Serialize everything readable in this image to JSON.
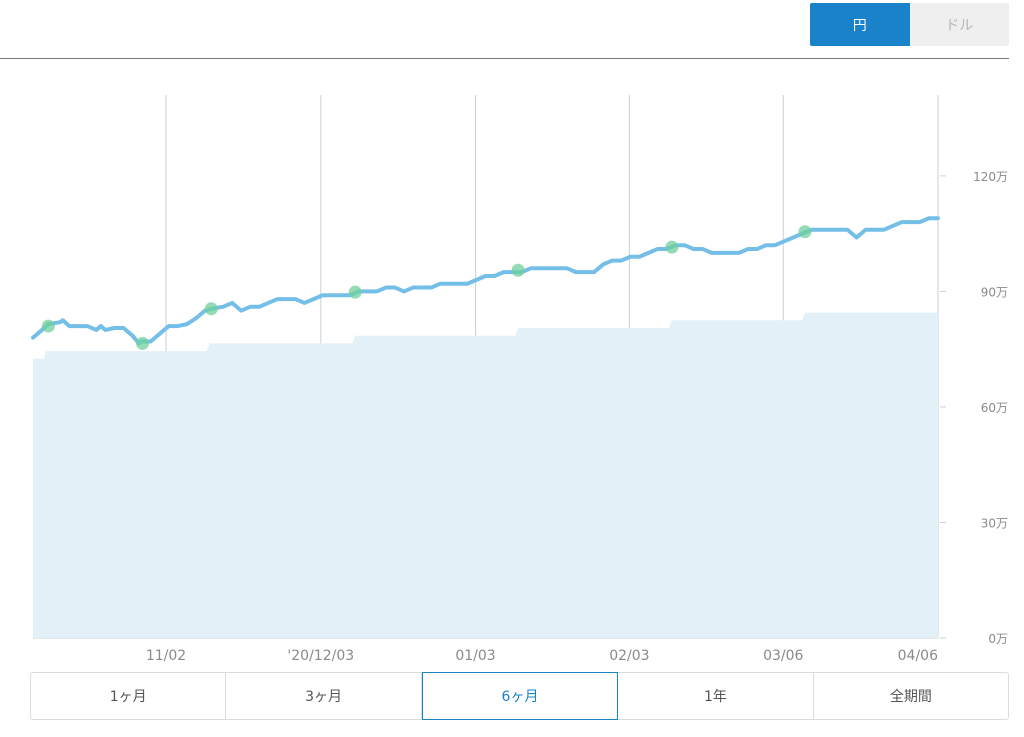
{
  "currency_toggle": {
    "options": [
      {
        "label": "円",
        "active": true
      },
      {
        "label": "ドル",
        "active": false
      }
    ]
  },
  "period_tabs": [
    {
      "label": "1ヶ月",
      "selected": false
    },
    {
      "label": "3ヶ月",
      "selected": false
    },
    {
      "label": "6ヶ月",
      "selected": true
    },
    {
      "label": "1年",
      "selected": false
    },
    {
      "label": "全期間",
      "selected": false
    }
  ],
  "colors": {
    "line": "#74bfe8",
    "area": "#e3f0f8",
    "marker": "#6fd09c",
    "grid": "#c8d0d8",
    "accent": "#1a82c8"
  },
  "chart_data": {
    "type": "line",
    "x_ticks": [
      "11/02",
      "'20/12/03",
      "01/03",
      "02/03",
      "03/06",
      "04/06"
    ],
    "y_ticks": [
      "0万",
      "30万",
      "60万",
      "90万",
      "120万"
    ],
    "y_tick_values": [
      0,
      30,
      60,
      90,
      120
    ],
    "x_range": [
      0,
      100
    ],
    "ylim": [
      0,
      141
    ],
    "x_tick_positions": [
      14.7,
      31.8,
      48.9,
      65.9,
      82.9,
      100
    ],
    "series": [
      {
        "kind": "line",
        "points": [
          [
            0,
            78
          ],
          [
            1,
            80
          ],
          [
            1.7,
            81.5
          ],
          [
            3,
            82
          ],
          [
            3.3,
            82.5
          ],
          [
            4,
            81
          ],
          [
            5,
            81
          ],
          [
            6,
            81
          ],
          [
            7,
            80
          ],
          [
            7.5,
            81
          ],
          [
            8,
            80
          ],
          [
            9,
            80.5
          ],
          [
            10,
            80.5
          ],
          [
            11,
            78.5
          ],
          [
            11.7,
            76.5
          ],
          [
            12,
            77
          ],
          [
            13,
            77
          ],
          [
            14,
            79
          ],
          [
            15,
            81
          ],
          [
            16,
            81
          ],
          [
            17,
            81.5
          ],
          [
            18,
            83
          ],
          [
            19,
            85
          ],
          [
            19.7,
            85.5
          ],
          [
            21,
            86
          ],
          [
            22,
            87
          ],
          [
            23,
            85
          ],
          [
            24,
            86
          ],
          [
            25,
            86
          ],
          [
            26,
            87
          ],
          [
            27,
            88
          ],
          [
            28,
            88
          ],
          [
            29,
            88
          ],
          [
            30,
            87
          ],
          [
            31,
            88
          ],
          [
            32,
            89
          ],
          [
            33,
            89
          ],
          [
            34,
            89
          ],
          [
            35,
            89
          ],
          [
            36,
            90
          ],
          [
            37,
            90
          ],
          [
            38,
            90
          ],
          [
            39,
            91
          ],
          [
            40,
            91
          ],
          [
            41,
            90
          ],
          [
            42,
            91
          ],
          [
            43,
            91
          ],
          [
            44,
            91
          ],
          [
            45,
            92
          ],
          [
            46,
            92
          ],
          [
            47,
            92
          ],
          [
            48,
            92
          ],
          [
            49,
            93
          ],
          [
            50,
            94
          ],
          [
            51,
            94
          ],
          [
            52,
            95
          ],
          [
            53,
            95
          ],
          [
            54,
            95
          ],
          [
            55,
            96
          ],
          [
            56,
            96
          ],
          [
            57,
            96
          ],
          [
            58,
            96
          ],
          [
            59,
            96
          ],
          [
            60,
            95
          ],
          [
            61,
            95
          ],
          [
            62,
            95
          ],
          [
            63,
            97
          ],
          [
            64,
            98
          ],
          [
            65,
            98
          ],
          [
            66,
            99
          ],
          [
            67,
            99
          ],
          [
            68,
            100
          ],
          [
            69,
            101
          ],
          [
            70,
            101
          ],
          [
            71,
            102
          ],
          [
            72,
            102
          ],
          [
            73,
            101
          ],
          [
            74,
            101
          ],
          [
            75,
            100
          ],
          [
            76,
            100
          ],
          [
            77,
            100
          ],
          [
            78,
            100
          ],
          [
            79,
            101
          ],
          [
            80,
            101
          ],
          [
            81,
            102
          ],
          [
            82,
            102
          ],
          [
            83,
            103
          ],
          [
            84,
            104
          ],
          [
            85,
            105
          ],
          [
            86,
            106
          ],
          [
            87,
            106
          ],
          [
            88,
            106
          ],
          [
            89,
            106
          ],
          [
            90,
            106
          ],
          [
            91,
            104
          ],
          [
            92,
            106
          ],
          [
            93,
            106
          ],
          [
            94,
            106
          ],
          [
            95,
            107
          ],
          [
            96,
            108
          ],
          [
            97,
            108
          ],
          [
            98,
            108
          ],
          [
            99,
            109
          ],
          [
            100,
            109
          ]
        ]
      },
      {
        "kind": "area",
        "points": [
          [
            0,
            72.5
          ],
          [
            1.2,
            72.5
          ],
          [
            1.4,
            74.5
          ],
          [
            19.2,
            74.5
          ],
          [
            19.5,
            76.5
          ],
          [
            35.3,
            76.5
          ],
          [
            35.6,
            78.5
          ],
          [
            53.3,
            78.5
          ],
          [
            53.6,
            80.5
          ],
          [
            70.3,
            80.5
          ],
          [
            70.6,
            82.5
          ],
          [
            85,
            82.5
          ],
          [
            85.3,
            84.5
          ],
          [
            100,
            84.5
          ]
        ]
      }
    ],
    "markers": [
      [
        1.7,
        81
      ],
      [
        12.1,
        76.5
      ],
      [
        19.7,
        85.5
      ],
      [
        35.6,
        89.8
      ],
      [
        53.6,
        95.5
      ],
      [
        70.6,
        101.5
      ],
      [
        85.3,
        105.5
      ]
    ]
  }
}
